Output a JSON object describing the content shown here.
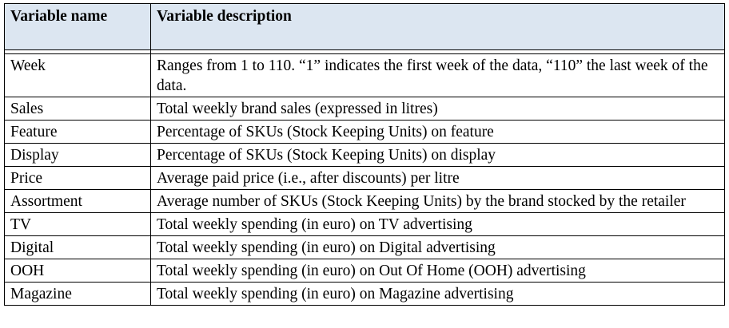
{
  "table": {
    "headers": [
      "Variable name",
      "Variable description"
    ],
    "rows": [
      {
        "name": "Week",
        "description": "Ranges from 1 to 110. “1” indicates the first week of the data, “110” the last week of the data."
      },
      {
        "name": "Sales",
        "description": "Total weekly brand sales (expressed in litres)"
      },
      {
        "name": "Feature",
        "description": "Percentage of SKUs (Stock Keeping Units) on feature"
      },
      {
        "name": "Display",
        "description": "Percentage of SKUs (Stock Keeping Units) on display"
      },
      {
        "name": "Price",
        "description": "Average paid price (i.e., after discounts) per litre"
      },
      {
        "name": "Assortment",
        "description": "Average number of SKUs (Stock Keeping Units) by the brand stocked by the retailer"
      },
      {
        "name": "TV",
        "description": "Total weekly spending (in euro) on TV advertising"
      },
      {
        "name": "Digital",
        "description": "Total weekly spending (in euro) on Digital advertising"
      },
      {
        "name": "OOH",
        "description": "Total weekly spending (in euro) on Out Of Home (OOH) advertising"
      },
      {
        "name": "Magazine",
        "description": "Total weekly spending (in euro) on Magazine advertising"
      }
    ]
  }
}
